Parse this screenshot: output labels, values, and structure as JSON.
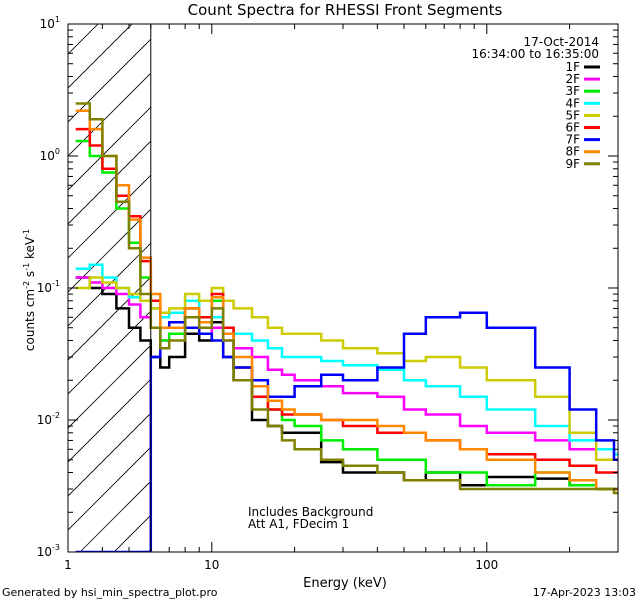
{
  "chart_data": {
    "type": "line",
    "title": "Count Spectra for RHESSI Front Segments",
    "xlabel": "Energy (keV)",
    "ylabel": {
      "base": "counts cm",
      "exp1": "-2",
      "mid1": " s",
      "exp2": "-1",
      "mid2": " keV",
      "exp3": "-1"
    },
    "xscale": "log",
    "yscale": "log",
    "xlim": [
      3,
      300
    ],
    "ylim": [
      0.001,
      10
    ],
    "xticks": [
      {
        "v": 10,
        "label": "10"
      },
      {
        "v": 100,
        "label": "100"
      }
    ],
    "x_edge_label": "1",
    "yticks": [
      {
        "exp": -3,
        "label_base": "10",
        "label_exp": "-3"
      },
      {
        "exp": -2,
        "label_base": "10",
        "label_exp": "-2"
      },
      {
        "exp": -1,
        "label_base": "10",
        "label_exp": "-1"
      },
      {
        "exp": 0,
        "label_base": "10",
        "label_exp": "0"
      },
      {
        "exp": 1,
        "label_base": "10",
        "label_exp": "1"
      }
    ],
    "date": "17-Oct-2014",
    "time_range": "16:34:00 to 16:35:00",
    "attenuator_boundary_keV": 6,
    "notes": [
      "Includes Background",
      "Att A1, FDecim 1"
    ],
    "legend_placement": "top-right",
    "series": [
      {
        "name": "1F",
        "color": "#000000",
        "x": [
          3.2,
          3.6,
          4,
          4.5,
          5,
          5.5,
          6,
          6.5,
          7,
          8,
          9,
          10,
          11,
          12,
          14,
          16,
          18,
          20,
          25,
          30,
          40,
          50,
          60,
          80,
          100,
          150,
          200,
          250,
          290
        ],
        "values": [
          0.12,
          0.1,
          0.09,
          0.07,
          0.05,
          0.04,
          0.03,
          0.025,
          0.03,
          0.045,
          0.04,
          0.055,
          0.03,
          0.02,
          0.01,
          0.009,
          0.008,
          0.008,
          0.0048,
          0.004,
          0.004,
          0.0035,
          0.004,
          0.0032,
          0.0037,
          0.0036,
          0.0032,
          0.003,
          0.003
        ]
      },
      {
        "name": "2F",
        "color": "#ff00ff",
        "x": [
          3.2,
          3.6,
          4,
          4.5,
          5,
          5.5,
          6,
          6.5,
          7,
          8,
          9,
          10,
          11,
          12,
          14,
          16,
          18,
          20,
          25,
          30,
          40,
          50,
          60,
          80,
          100,
          150,
          200,
          250,
          290
        ],
        "values": [
          0.12,
          0.11,
          0.1,
          0.09,
          0.075,
          0.06,
          0.05,
          0.04,
          0.045,
          0.06,
          0.045,
          0.05,
          0.04,
          0.035,
          0.03,
          0.024,
          0.022,
          0.02,
          0.018,
          0.016,
          0.015,
          0.012,
          0.011,
          0.009,
          0.008,
          0.007,
          0.006,
          0.005,
          0.005
        ]
      },
      {
        "name": "3F",
        "color": "#00ee00",
        "x": [
          3.2,
          3.6,
          4,
          4.5,
          5,
          5.5,
          6,
          6.5,
          7,
          8,
          9,
          10,
          11,
          12,
          14,
          16,
          18,
          20,
          25,
          30,
          40,
          50,
          60,
          80,
          100,
          150,
          200,
          250,
          290
        ],
        "values": [
          1.3,
          1.0,
          0.75,
          0.4,
          0.22,
          0.12,
          0.07,
          0.04,
          0.045,
          0.07,
          0.06,
          0.08,
          0.045,
          0.025,
          0.015,
          0.012,
          0.01,
          0.009,
          0.007,
          0.006,
          0.005,
          0.005,
          0.004,
          0.004,
          0.0032,
          0.004,
          0.0032,
          0.003,
          0.003
        ]
      },
      {
        "name": "4F",
        "color": "#00ffff",
        "x": [
          3.2,
          3.6,
          4,
          4.5,
          5,
          5.5,
          6,
          6.5,
          7,
          8,
          9,
          10,
          11,
          12,
          14,
          16,
          18,
          20,
          25,
          30,
          40,
          50,
          60,
          80,
          100,
          150,
          200,
          250,
          290
        ],
        "values": [
          0.14,
          0.15,
          0.12,
          0.1,
          0.085,
          0.08,
          0.07,
          0.06,
          0.065,
          0.08,
          0.06,
          0.06,
          0.05,
          0.045,
          0.04,
          0.035,
          0.03,
          0.03,
          0.028,
          0.026,
          0.024,
          0.02,
          0.018,
          0.015,
          0.012,
          0.009,
          0.007,
          0.006,
          0.0055
        ]
      },
      {
        "name": "5F",
        "color": "#cccc00",
        "x": [
          3.2,
          3.6,
          4,
          4.5,
          5,
          5.5,
          6,
          6.5,
          7,
          8,
          9,
          10,
          11,
          12,
          14,
          16,
          18,
          20,
          25,
          30,
          40,
          50,
          60,
          80,
          100,
          150,
          200,
          250,
          290
        ],
        "values": [
          0.1,
          0.12,
          0.11,
          0.1,
          0.09,
          0.08,
          0.07,
          0.065,
          0.07,
          0.09,
          0.08,
          0.1,
          0.08,
          0.07,
          0.06,
          0.05,
          0.045,
          0.045,
          0.04,
          0.035,
          0.032,
          0.028,
          0.03,
          0.025,
          0.02,
          0.015,
          0.008,
          0.005,
          0.005
        ]
      },
      {
        "name": "6F",
        "color": "#ff0000",
        "x": [
          3.2,
          3.6,
          4,
          4.5,
          5,
          5.5,
          6,
          6.5,
          7,
          8,
          9,
          10,
          11,
          12,
          14,
          16,
          18,
          20,
          25,
          30,
          40,
          50,
          60,
          80,
          100,
          150,
          200,
          250,
          290
        ],
        "values": [
          1.6,
          1.2,
          0.8,
          0.5,
          0.35,
          0.16,
          0.08,
          0.05,
          0.05,
          0.07,
          0.06,
          0.09,
          0.05,
          0.025,
          0.015,
          0.012,
          0.011,
          0.011,
          0.01,
          0.009,
          0.008,
          0.008,
          0.007,
          0.006,
          0.0055,
          0.005,
          0.0045,
          0.004,
          0.004
        ]
      },
      {
        "name": "7F",
        "color": "#0000ff",
        "x": [
          3.2,
          3.6,
          4,
          4.5,
          5,
          5.5,
          6,
          6.5,
          7,
          8,
          9,
          10,
          11,
          12,
          14,
          16,
          18,
          20,
          25,
          30,
          40,
          50,
          60,
          80,
          100,
          150,
          200,
          250,
          290
        ],
        "values": [
          0.001,
          0.001,
          0.001,
          0.001,
          0.001,
          0.001,
          0.03,
          0.05,
          0.055,
          0.05,
          0.045,
          0.04,
          0.03,
          0.025,
          0.02,
          0.015,
          0.015,
          0.018,
          0.022,
          0.02,
          0.025,
          0.045,
          0.06,
          0.065,
          0.05,
          0.025,
          0.012,
          0.007,
          0.005
        ]
      },
      {
        "name": "8F",
        "color": "#ff8800",
        "x": [
          3.2,
          3.6,
          4,
          4.5,
          5,
          5.5,
          6,
          6.5,
          7,
          8,
          9,
          10,
          11,
          12,
          14,
          16,
          18,
          20,
          25,
          30,
          40,
          50,
          60,
          80,
          100,
          150,
          200,
          250,
          290
        ],
        "values": [
          2.2,
          1.6,
          1.0,
          0.6,
          0.33,
          0.17,
          0.09,
          0.05,
          0.05,
          0.07,
          0.055,
          0.085,
          0.045,
          0.03,
          0.018,
          0.014,
          0.012,
          0.011,
          0.01,
          0.01,
          0.009,
          0.008,
          0.007,
          0.006,
          0.005,
          0.004,
          0.0035,
          0.003,
          0.003
        ]
      },
      {
        "name": "9F",
        "color": "#808000",
        "x": [
          3.2,
          3.6,
          4,
          4.5,
          5,
          5.5,
          6,
          6.5,
          7,
          8,
          9,
          10,
          11,
          12,
          14,
          16,
          18,
          20,
          25,
          30,
          40,
          50,
          60,
          80,
          100,
          150,
          200,
          250,
          290
        ],
        "values": [
          2.5,
          1.9,
          1.0,
          0.45,
          0.2,
          0.09,
          0.05,
          0.035,
          0.04,
          0.06,
          0.05,
          0.07,
          0.04,
          0.02,
          0.012,
          0.009,
          0.007,
          0.006,
          0.005,
          0.0045,
          0.004,
          0.0035,
          0.0035,
          0.003,
          0.003,
          0.003,
          0.003,
          0.003,
          0.0028
        ]
      }
    ]
  },
  "footer": {
    "generated_by": "Generated by hsi_min_spectra_plot.pro",
    "timestamp": "17-Apr-2023 13:03"
  }
}
